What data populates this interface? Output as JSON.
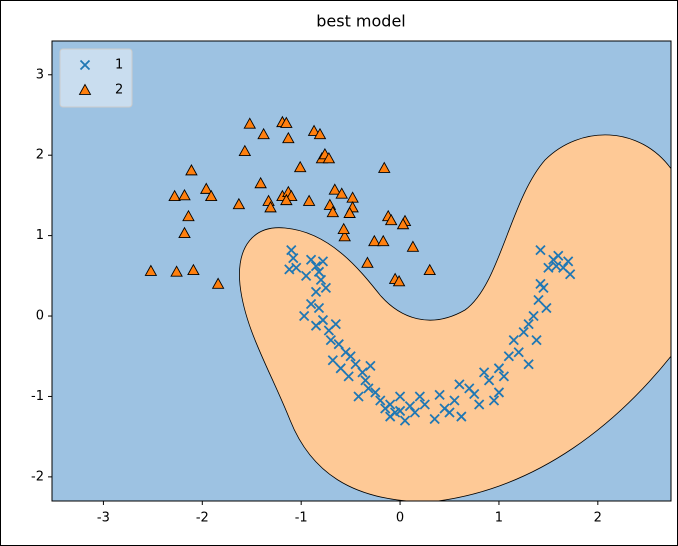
{
  "chart_data": {
    "type": "scatter",
    "title": "best model",
    "xlim": [
      -3.52,
      2.74
    ],
    "ylim": [
      -2.3,
      3.42
    ],
    "xticks": [
      -3,
      -2,
      -1,
      0,
      1,
      2
    ],
    "yticks": [
      -2,
      -1,
      0,
      1,
      2,
      3
    ],
    "legend": "upper left",
    "series": [
      {
        "name": "1",
        "color": "#1f77b4",
        "marker": "x",
        "x": [
          -1.1,
          -1.08,
          -1.05,
          -1.12,
          -0.9,
          -0.85,
          -0.82,
          -0.78,
          -0.8,
          -0.75,
          -0.85,
          -0.9,
          -0.97,
          -0.82,
          -0.78,
          -0.85,
          -0.72,
          -0.7,
          -0.62,
          -0.68,
          -0.55,
          -0.6,
          -0.5,
          -0.45,
          -0.52,
          -0.38,
          -0.3,
          -0.42,
          -0.32,
          -0.25,
          -0.2,
          -0.15,
          -0.1,
          -0.1,
          -0.05,
          0.0,
          0.05,
          0.0,
          0.1,
          0.2,
          0.25,
          0.35,
          0.4,
          0.45,
          0.5,
          0.55,
          0.6,
          0.62,
          0.7,
          0.75,
          0.8,
          0.85,
          0.9,
          0.95,
          1.0,
          1.05,
          1.1,
          1.15,
          1.2,
          1.25,
          1.3,
          1.35,
          1.38,
          1.4,
          1.42,
          1.45,
          1.48,
          1.5,
          1.55,
          1.42,
          1.6,
          1.65,
          1.7,
          1.72,
          1.58,
          1.3,
          1.0,
          -0.95,
          -0.65,
          -0.35,
          0.15
        ],
        "values": [
          0.82,
          0.72,
          0.6,
          0.58,
          0.7,
          0.62,
          0.55,
          0.68,
          0.45,
          0.35,
          0.3,
          0.15,
          0.0,
          0.1,
          -0.05,
          -0.12,
          -0.18,
          -0.3,
          -0.35,
          -0.55,
          -0.45,
          -0.65,
          -0.5,
          -0.6,
          -0.75,
          -0.7,
          -0.62,
          -1.0,
          -0.9,
          -0.95,
          -1.05,
          -1.15,
          -1.25,
          -1.1,
          -1.2,
          -1.0,
          -1.3,
          -1.18,
          -1.12,
          -1.0,
          -1.1,
          -1.28,
          -0.98,
          -1.15,
          -1.2,
          -1.05,
          -0.85,
          -1.25,
          -0.9,
          -0.97,
          -1.1,
          -0.7,
          -0.8,
          -1.05,
          -0.65,
          -0.75,
          -0.5,
          -0.3,
          -0.45,
          -0.2,
          -0.1,
          0.0,
          -0.3,
          0.2,
          0.4,
          0.35,
          0.1,
          0.6,
          0.7,
          0.82,
          0.75,
          0.6,
          0.68,
          0.52,
          0.62,
          -0.6,
          -0.95,
          0.5,
          -0.1,
          -0.8,
          -1.2
        ]
      },
      {
        "name": "2",
        "color": "#ff7f0e",
        "marker": "triangle",
        "x": [
          -2.52,
          -2.26,
          -2.09,
          -1.84,
          -2.18,
          -2.14,
          -2.28,
          -2.18,
          -1.96,
          -1.91,
          -2.11,
          -1.63,
          -1.57,
          -1.52,
          -1.38,
          -1.41,
          -1.33,
          -1.31,
          -1.19,
          -1.13,
          -1.1,
          -1.15,
          -1.19,
          -1.15,
          -1.13,
          -1.01,
          -0.92,
          -0.87,
          -0.81,
          -0.79,
          -0.76,
          -0.72,
          -0.71,
          -0.66,
          -0.68,
          -0.59,
          -0.56,
          -0.57,
          -0.48,
          -0.48,
          -0.51,
          -0.16,
          -0.26,
          -0.17,
          -0.12,
          -0.09,
          -0.33,
          0.05,
          0.03,
          0.13,
          -0.05,
          -0.01,
          0.3
        ],
        "values": [
          0.56,
          0.55,
          0.57,
          0.4,
          1.03,
          1.24,
          1.49,
          1.5,
          1.58,
          1.49,
          1.81,
          1.39,
          2.05,
          2.39,
          2.26,
          1.65,
          1.43,
          1.35,
          1.49,
          1.54,
          1.49,
          1.44,
          2.41,
          2.4,
          2.21,
          1.85,
          1.43,
          2.3,
          2.26,
          1.96,
          2.01,
          1.96,
          1.38,
          1.57,
          1.29,
          1.52,
          0.99,
          1.08,
          1.47,
          1.35,
          1.28,
          1.84,
          0.93,
          0.93,
          1.24,
          1.19,
          0.66,
          1.18,
          1.14,
          0.86,
          0.46,
          0.43,
          0.57
        ]
      }
    ]
  }
}
